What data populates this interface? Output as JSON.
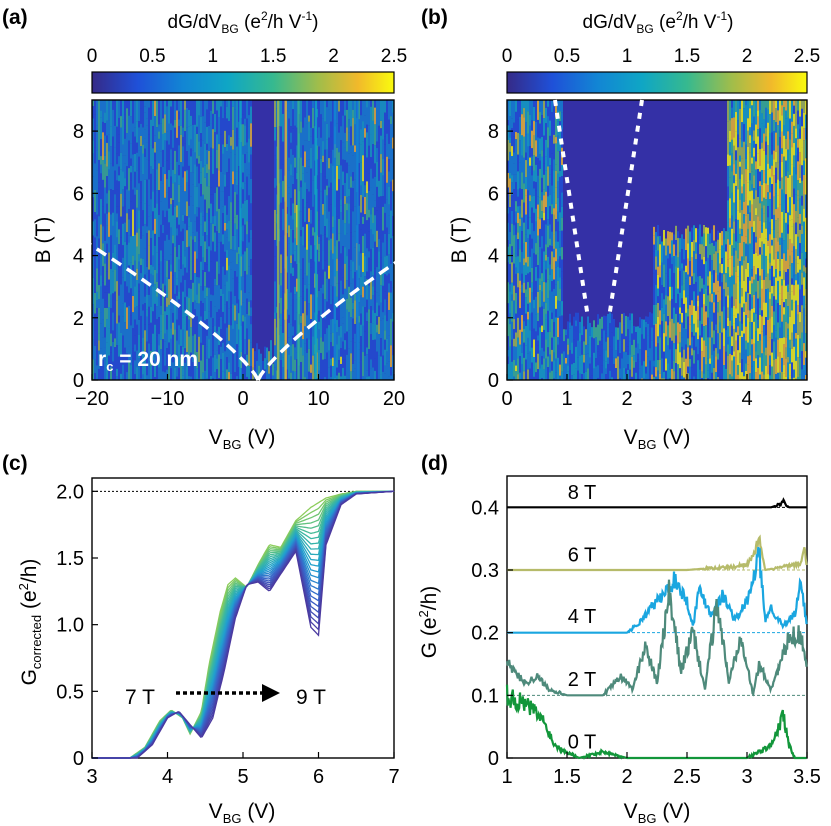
{
  "panels": {
    "a": {
      "label": "(a)",
      "cbar": {
        "title": "dG/dV",
        "sub": "BG",
        "unit": " (e",
        "sup": "2",
        "unit2": "/h V",
        "sup2": "-1",
        "unit3": ")",
        "ticks": [
          "0",
          "0.5",
          "1",
          "1.5",
          "2",
          "2.5"
        ]
      },
      "xlabel": "V",
      "xlabel_sub": "BG",
      "xlabel_unit": " (V)",
      "ylabel": "B (T)",
      "xticks": [
        "−20",
        "−10",
        "0",
        "10",
        "20"
      ],
      "yticks": [
        "0",
        "2",
        "4",
        "6",
        "8"
      ],
      "annotation": "r",
      "annotation_sub": "c",
      "annotation_rest": " = 20 nm"
    },
    "b": {
      "label": "(b)",
      "cbar": {
        "title": "dG/dV",
        "sub": "BG",
        "unit": " (e",
        "sup": "2",
        "unit2": "/h V",
        "sup2": "-1",
        "unit3": ")",
        "ticks": [
          "0",
          "0.5",
          "1",
          "1.5",
          "2",
          "2.5"
        ]
      },
      "xlabel": "V",
      "xlabel_sub": "BG",
      "xlabel_unit": " (V)",
      "ylabel": "B (T)",
      "xticks": [
        "0",
        "1",
        "2",
        "3",
        "4",
        "5"
      ],
      "yticks": [
        "0",
        "2",
        "4",
        "6",
        "8"
      ]
    },
    "c": {
      "label": "(c)",
      "ylabel": "G",
      "ylabel_sub": "corrected",
      "ylabel_unit": " (e",
      "ylabel_sup": "2",
      "ylabel_unit2": "/h)",
      "xlabel": "V",
      "xlabel_sub": "BG",
      "xlabel_unit": " (V)",
      "xticks": [
        "3",
        "4",
        "5",
        "6",
        "7"
      ],
      "yticks": [
        "0",
        "0.5",
        "1.0",
        "1.5",
        "2.0"
      ],
      "arrow_start": "7 T",
      "arrow_end": "9 T"
    },
    "d": {
      "label": "(d)",
      "ylabel": "G (e",
      "ylabel_sup": "2",
      "ylabel_unit": "/h)",
      "xlabel": "V",
      "xlabel_sub": "BG",
      "xlabel_unit": " (V)",
      "xticks": [
        "1",
        "1.5",
        "2",
        "2.5",
        "3",
        "3.5"
      ],
      "yticks": [
        "0",
        "0.1",
        "0.2",
        "0.3",
        "0.4"
      ],
      "trace_labels": [
        "8 T",
        "6 T",
        "4 T",
        "2 T",
        "0 T"
      ]
    }
  },
  "colors": {
    "viridis_low": "#2f2aa8",
    "viridis_high": "#f9fb0e",
    "trace_8T": "#000000",
    "trace_6T": "#b6bb6a",
    "trace_4T": "#1aa6e0",
    "trace_2T": "#4e8a7b",
    "trace_0T": "#12963a"
  },
  "chart_data": [
    {
      "type": "heatmap",
      "panel": "a",
      "x_range": [
        -20,
        20
      ],
      "y_range": [
        0,
        9
      ],
      "colorscale": "parula",
      "clim": [
        0,
        2.5
      ],
      "overlay": "dashed white boundary curves meeting at V_BG ≈ 2 V, B = 0"
    },
    {
      "type": "heatmap",
      "panel": "b",
      "x_range": [
        0,
        5
      ],
      "y_range": [
        0,
        9
      ],
      "colorscale": "parula",
      "clim": [
        0,
        2.5
      ],
      "overlay": "dotted white lines from (0.8, 9) to (1.35, 2) and from (2.25, 9) to (1.7, 2)"
    },
    {
      "type": "line",
      "panel": "c",
      "x_range": [
        3,
        7
      ],
      "y_range": [
        0,
        2.1
      ],
      "reference_line": 2.0,
      "series_7T": {
        "x": [
          3.0,
          3.5,
          3.7,
          3.9,
          4.05,
          4.2,
          4.3,
          4.45,
          4.55,
          4.7,
          4.8,
          4.9,
          5.05,
          5.2,
          5.35,
          5.5,
          5.7,
          5.9,
          6.1,
          6.3,
          6.5,
          7.0
        ],
        "y": [
          0,
          0,
          0.08,
          0.28,
          0.36,
          0.3,
          0.18,
          0.35,
          0.7,
          1.1,
          1.3,
          1.35,
          1.28,
          1.45,
          1.6,
          1.58,
          1.78,
          1.88,
          1.95,
          1.98,
          2.0,
          2.0
        ]
      },
      "series_9T": {
        "x": [
          3.0,
          3.6,
          3.8,
          4.0,
          4.15,
          4.3,
          4.45,
          4.6,
          4.75,
          4.9,
          5.05,
          5.2,
          5.35,
          5.5,
          5.7,
          5.9,
          6.0,
          6.1,
          6.3,
          6.5,
          7.0
        ],
        "y": [
          0,
          0,
          0.1,
          0.3,
          0.35,
          0.25,
          0.15,
          0.3,
          0.65,
          1.05,
          1.3,
          1.32,
          1.25,
          1.38,
          1.55,
          0.98,
          0.92,
          1.6,
          1.9,
          1.98,
          2.0
        ]
      }
    },
    {
      "type": "line",
      "panel": "d",
      "x_range": [
        1,
        3.5
      ],
      "y_range": [
        0,
        0.45
      ],
      "series": [
        {
          "name": "8 T",
          "baseline": 0.4,
          "x": [
            1.0,
            3.2,
            3.28,
            3.3,
            3.32,
            3.35,
            3.5
          ],
          "y": [
            0.4,
            0.4,
            0.405,
            0.412,
            0.405,
            0.4,
            0.4
          ]
        },
        {
          "name": "6 T",
          "baseline": 0.3,
          "x": [
            1.0,
            2.5,
            2.7,
            2.9,
            3.0,
            3.05,
            3.1,
            3.15,
            3.3,
            3.45,
            3.48,
            3.5
          ],
          "y": [
            0.3,
            0.3,
            0.303,
            0.305,
            0.31,
            0.32,
            0.35,
            0.3,
            0.305,
            0.31,
            0.34,
            0.3
          ]
        },
        {
          "name": "4 T",
          "baseline": 0.2,
          "x": [
            1.0,
            2.0,
            2.1,
            2.2,
            2.3,
            2.4,
            2.5,
            2.55,
            2.6,
            2.7,
            2.8,
            2.9,
            3.0,
            3.05,
            3.1,
            3.15,
            3.2,
            3.3,
            3.4,
            3.45,
            3.5
          ],
          "y": [
            0.2,
            0.2,
            0.215,
            0.24,
            0.26,
            0.285,
            0.25,
            0.21,
            0.27,
            0.23,
            0.26,
            0.22,
            0.25,
            0.28,
            0.33,
            0.22,
            0.24,
            0.21,
            0.23,
            0.28,
            0.21
          ]
        },
        {
          "name": "2 T",
          "baseline": 0.1,
          "x": [
            1.0,
            1.05,
            1.15,
            1.25,
            1.35,
            1.5,
            1.8,
            1.95,
            2.05,
            2.15,
            2.25,
            2.35,
            2.45,
            2.55,
            2.65,
            2.75,
            2.85,
            2.95,
            3.05,
            3.1,
            3.2,
            3.35,
            3.45,
            3.5
          ],
          "y": [
            0.16,
            0.14,
            0.12,
            0.13,
            0.11,
            0.1,
            0.1,
            0.13,
            0.11,
            0.18,
            0.12,
            0.26,
            0.14,
            0.2,
            0.11,
            0.25,
            0.12,
            0.2,
            0.1,
            0.15,
            0.11,
            0.19,
            0.2,
            0.14
          ]
        },
        {
          "name": "0 T",
          "baseline": 0.0,
          "x": [
            1.0,
            1.1,
            1.2,
            1.3,
            1.35,
            1.4,
            1.5,
            1.6,
            1.8,
            2.0,
            2.5,
            3.0,
            3.1,
            3.2,
            3.25,
            3.3,
            3.35,
            3.4,
            3.5
          ],
          "y": [
            0.1,
            0.09,
            0.08,
            0.06,
            0.04,
            0.02,
            0.01,
            0.0,
            0.01,
            0.0,
            0.0,
            0.0,
            0.01,
            0.02,
            0.04,
            0.07,
            0.02,
            0.0,
            0.0
          ]
        }
      ]
    }
  ]
}
